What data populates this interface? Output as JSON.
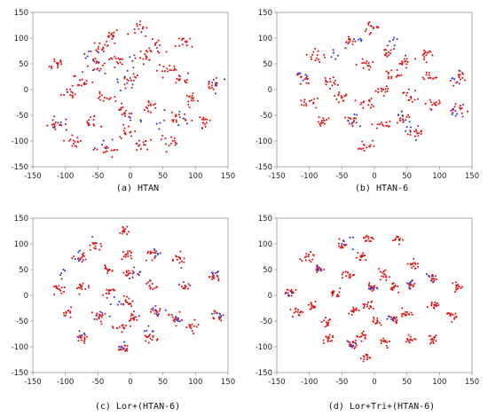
{
  "colors": {
    "red": "#e01818",
    "blue": "#2a3ce0",
    "axis": "#9a9a9a"
  },
  "chart_data": [
    {
      "type": "scatter",
      "caption": "(a)  HTAN",
      "xlim": [
        -150,
        150
      ],
      "ylim": [
        -150,
        150
      ],
      "xticks": [
        "-150",
        "-100",
        "-50",
        "0",
        "50",
        "100",
        "150"
      ],
      "yticks": [
        "150",
        "100",
        "50",
        "0",
        "-50",
        "-100",
        "-150"
      ],
      "grid": false,
      "series": [
        {
          "color": "red",
          "spread": 7,
          "seed": 11,
          "clusters": [
            [
              -115,
              50
            ],
            [
              -110,
              -65
            ],
            [
              -95,
              -5
            ],
            [
              -75,
              15
            ],
            [
              -85,
              -100
            ],
            [
              -60,
              -65
            ],
            [
              -50,
              50
            ],
            [
              -45,
              80
            ],
            [
              -40,
              -15
            ],
            [
              -35,
              -120
            ],
            [
              -30,
              105
            ],
            [
              -20,
              55
            ],
            [
              -10,
              -40
            ],
            [
              -5,
              -80
            ],
            [
              0,
              20
            ],
            [
              15,
              120
            ],
            [
              15,
              -110
            ],
            [
              20,
              65
            ],
            [
              30,
              -30
            ],
            [
              40,
              80
            ],
            [
              55,
              40
            ],
            [
              60,
              -100
            ],
            [
              75,
              -55
            ],
            [
              80,
              20
            ],
            [
              85,
              90
            ],
            [
              95,
              -20
            ],
            [
              110,
              -60
            ],
            [
              125,
              10
            ]
          ]
        },
        {
          "color": "blue",
          "spread": 8,
          "seed": 23,
          "clusters": [
            [
              -110,
              -65
            ],
            [
              -60,
              65
            ],
            [
              -40,
              45
            ],
            [
              -35,
              -115
            ],
            [
              -15,
              5
            ],
            [
              0,
              45
            ],
            [
              10,
              -55
            ],
            [
              50,
              -60
            ],
            [
              75,
              -55
            ],
            [
              130,
              10
            ]
          ]
        }
      ]
    },
    {
      "type": "scatter",
      "caption": "(b)  HTAN-6",
      "xlim": [
        -150,
        150
      ],
      "ylim": [
        -150,
        150
      ],
      "xticks": [
        "-150",
        "-100",
        "-50",
        "0",
        "50",
        "100",
        "150"
      ],
      "yticks": [
        "150",
        "100",
        "50",
        "0",
        "-50",
        "-100",
        "-150"
      ],
      "grid": false,
      "series": [
        {
          "color": "red",
          "spread": 6,
          "seed": 37,
          "clusters": [
            [
              -110,
              20
            ],
            [
              -100,
              -25
            ],
            [
              -90,
              65
            ],
            [
              -80,
              -60
            ],
            [
              -65,
              15
            ],
            [
              -50,
              -15
            ],
            [
              -40,
              95
            ],
            [
              -35,
              -60
            ],
            [
              -15,
              50
            ],
            [
              -15,
              -25
            ],
            [
              -15,
              -110
            ],
            [
              -5,
              120
            ],
            [
              10,
              0
            ],
            [
              15,
              -70
            ],
            [
              20,
              75
            ],
            [
              30,
              30
            ],
            [
              40,
              -55
            ],
            [
              50,
              55
            ],
            [
              55,
              -10
            ],
            [
              65,
              -80
            ],
            [
              80,
              70
            ],
            [
              85,
              25
            ],
            [
              90,
              -30
            ],
            [
              130,
              -40
            ],
            [
              130,
              25
            ]
          ]
        },
        {
          "color": "blue",
          "spread": 7,
          "seed": 41,
          "clusters": [
            [
              -115,
              25
            ],
            [
              -60,
              70
            ],
            [
              -30,
              -55
            ],
            [
              -20,
              90
            ],
            [
              30,
              95
            ],
            [
              45,
              -55
            ],
            [
              55,
              -80
            ],
            [
              130,
              20
            ],
            [
              130,
              -40
            ]
          ]
        }
      ]
    },
    {
      "type": "scatter",
      "caption": "(c)  Lor+(HTAN-6)",
      "xlim": [
        -150,
        150
      ],
      "ylim": [
        -150,
        150
      ],
      "xticks": [
        "-150",
        "-100",
        "-50",
        "0",
        "50",
        "100",
        "150"
      ],
      "yticks": [
        "150",
        "100",
        "50",
        "0",
        "-50",
        "-100",
        "-150"
      ],
      "grid": false,
      "series": [
        {
          "color": "red",
          "spread": 5.5,
          "seed": 53,
          "clusters": [
            [
              -110,
              15
            ],
            [
              -95,
              -35
            ],
            [
              -75,
              75
            ],
            [
              -75,
              15
            ],
            [
              -75,
              -85
            ],
            [
              -55,
              100
            ],
            [
              -45,
              -40
            ],
            [
              -35,
              50
            ],
            [
              -30,
              5
            ],
            [
              -15,
              -65
            ],
            [
              -10,
              -105
            ],
            [
              -10,
              125
            ],
            [
              -5,
              -15
            ],
            [
              -5,
              80
            ],
            [
              0,
              45
            ],
            [
              5,
              -45
            ],
            [
              30,
              -85
            ],
            [
              35,
              80
            ],
            [
              35,
              20
            ],
            [
              40,
              -30
            ],
            [
              75,
              70
            ],
            [
              70,
              -45
            ],
            [
              85,
              15
            ],
            [
              95,
              -60
            ],
            [
              130,
              35
            ],
            [
              135,
              -40
            ]
          ]
        },
        {
          "color": "blue",
          "spread": 6,
          "seed": 67,
          "clusters": [
            [
              -100,
              40
            ],
            [
              -80,
              75
            ],
            [
              -75,
              -80
            ],
            [
              -45,
              -40
            ],
            [
              -20,
              -15
            ],
            [
              -10,
              -100
            ],
            [
              5,
              45
            ],
            [
              25,
              -75
            ],
            [
              35,
              80
            ],
            [
              45,
              -30
            ],
            [
              75,
              -45
            ],
            [
              130,
              40
            ],
            [
              135,
              -40
            ]
          ]
        }
      ]
    },
    {
      "type": "scatter",
      "caption": "(d)  Lor+Tri+(HTAN-6)",
      "xlim": [
        -150,
        150
      ],
      "ylim": [
        -150,
        150
      ],
      "xticks": [
        "-150",
        "-100",
        "-50",
        "0",
        "50",
        "100",
        "150"
      ],
      "yticks": [
        "150",
        "100",
        "50",
        "0",
        "-50",
        "-100",
        "-150"
      ],
      "grid": false,
      "series": [
        {
          "color": "red",
          "spread": 4.5,
          "seed": 79,
          "clusters": [
            [
              -130,
              5
            ],
            [
              -120,
              -30
            ],
            [
              -100,
              75
            ],
            [
              -95,
              -20
            ],
            [
              -85,
              50
            ],
            [
              -75,
              -50
            ],
            [
              -70,
              -85
            ],
            [
              -60,
              5
            ],
            [
              -50,
              100
            ],
            [
              -40,
              40
            ],
            [
              -35,
              -95
            ],
            [
              -30,
              -30
            ],
            [
              -20,
              75
            ],
            [
              -20,
              -80
            ],
            [
              -15,
              -120
            ],
            [
              -10,
              110
            ],
            [
              -10,
              -20
            ],
            [
              -5,
              15
            ],
            [
              5,
              -50
            ],
            [
              15,
              40
            ],
            [
              15,
              -90
            ],
            [
              30,
              15
            ],
            [
              30,
              -45
            ],
            [
              35,
              110
            ],
            [
              50,
              -35
            ],
            [
              55,
              20
            ],
            [
              55,
              -85
            ],
            [
              60,
              60
            ],
            [
              90,
              35
            ],
            [
              90,
              -20
            ],
            [
              90,
              -85
            ],
            [
              120,
              -40
            ],
            [
              125,
              15
            ]
          ]
        },
        {
          "color": "blue",
          "spread": 5,
          "seed": 83,
          "clusters": [
            [
              -130,
              5
            ],
            [
              -85,
              50
            ],
            [
              -45,
              100
            ],
            [
              -35,
              -95
            ],
            [
              -5,
              15
            ],
            [
              30,
              -45
            ],
            [
              55,
              20
            ],
            [
              90,
              35
            ]
          ]
        }
      ]
    }
  ]
}
